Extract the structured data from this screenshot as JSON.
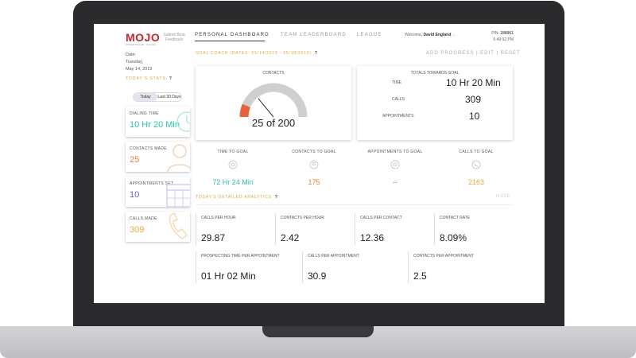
{
  "header": {
    "logo": "MOJO",
    "logo_tagline": "POWER DIALER · CALLING",
    "feedback": "Submit Beta Feedback",
    "nav": [
      "PERSONAL DASHBOARD",
      "TEAM LEADERBOARD",
      "LEAGUE"
    ],
    "welcome_prefix": "Welcome,",
    "user_name": "David England",
    "pin_label": "PIN:",
    "pin_value": "288961",
    "time": "6:49:02 PM"
  },
  "sidebar": {
    "date_label": "Date:",
    "weekday": "Tuesday,",
    "date": "May 14, 2019",
    "stats_header": "TODAY'S STATS",
    "help": "?",
    "range_options": [
      "Today",
      "Last 30 Days"
    ],
    "stats": [
      {
        "label": "DIALING TIME",
        "value": "10 Hr 20 Min",
        "icon": "clock-icon",
        "color": "#2bbfa8"
      },
      {
        "label": "CONTACTS MADE",
        "value": "25",
        "icon": "person-icon",
        "color": "#e8843c"
      },
      {
        "label": "APPOINTMENTS SET",
        "value": "10",
        "icon": "calendar-icon",
        "color": "#6a5acd"
      },
      {
        "label": "CALLS MADE",
        "value": "309",
        "icon": "phone-icon",
        "color": "#e6a93a"
      }
    ]
  },
  "goal_coach": {
    "header": "GOAL COACH (DATES: 05/14/2019 - 05/18/2019)",
    "help": "?",
    "actions": "ADD PROGRESS  |  EDIT  |  RESET",
    "contacts_title": "CONTACTS",
    "contacts_value": "25 of 200",
    "contacts_fraction": 0.125,
    "totals_title": "TOTALS TOWARDS GOAL",
    "totals": [
      {
        "label": "TIME",
        "value": "10 Hr 20 Min"
      },
      {
        "label": "CALLS",
        "value": "309"
      },
      {
        "label": "APPOINTMENTS",
        "value": "10"
      }
    ]
  },
  "goals": [
    {
      "label": "TIME TO GOAL",
      "value": "72 Hr 24 Min",
      "color": "#2bbfa8",
      "icon": "target-icon"
    },
    {
      "label": "CONTACTS TO GOAL",
      "value": "175",
      "color": "#e8843c",
      "icon": "person-circle-icon"
    },
    {
      "label": "APPOINTMENTS TO GOAL",
      "value": "--",
      "color": "#888888",
      "icon": "target-icon"
    },
    {
      "label": "CALLS TO GOAL",
      "value": "2163",
      "color": "#e6a93a",
      "icon": "phone-circle-icon"
    }
  ],
  "analytics": {
    "header": "TODAY'S DETAILED ANALYTICS",
    "help": "?",
    "hide": "HIDE",
    "row1": [
      {
        "label": "CALLS PER HOUR",
        "value": "29.87"
      },
      {
        "label": "CONTACTS PER HOUR",
        "value": "2.42"
      },
      {
        "label": "CALLS PER CONTACT",
        "value": "12.36"
      },
      {
        "label": "CONTACT RATE",
        "value": "8.09%"
      }
    ],
    "row2": [
      {
        "label": "PROSPECTING TIME PER APPOINTMENT",
        "value": "01 Hr 02 Min"
      },
      {
        "label": "CALLS PER APPOINTMENT",
        "value": "30.9"
      },
      {
        "label": "CONTACTS PER APPOINTMENT",
        "value": "2.5"
      }
    ]
  }
}
